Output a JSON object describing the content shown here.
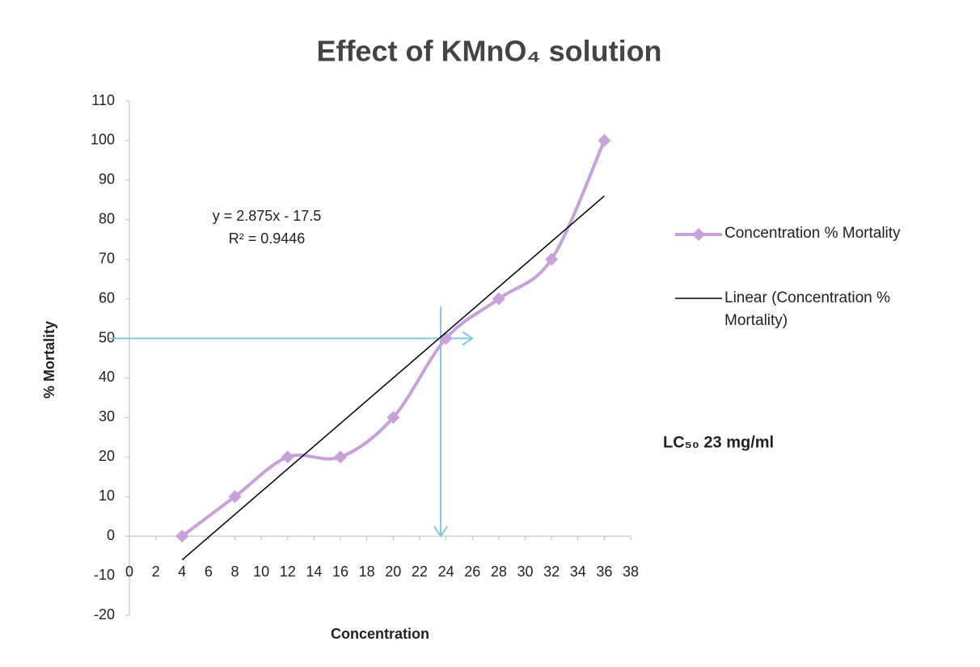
{
  "chart_data": {
    "type": "line",
    "title": "Effect of KMnO₄ solution",
    "x_label": "Concentration",
    "y_label": "% Mortality",
    "x": [
      4,
      8,
      12,
      16,
      20,
      24,
      28,
      32,
      36
    ],
    "series": [
      {
        "name": "Concentration % Mortality",
        "color": "#c9a0dc",
        "values": [
          0,
          10,
          20,
          20,
          30,
          50,
          60,
          70,
          100
        ]
      },
      {
        "name": "Linear (Concentration % Mortality)",
        "color": "#000000",
        "x": [
          4,
          36
        ],
        "values": [
          -6,
          86
        ]
      }
    ],
    "annotations": {
      "equation": "y = 2.875x - 17.5",
      "r_squared": "R² = 0.9446",
      "lc50": "LC₅₀ 23 mg/ml"
    },
    "guide": {
      "x": 23.6,
      "y": 50,
      "x_end": 26,
      "y_top": 58,
      "color": "#7ec8e3"
    },
    "xlim": [
      0,
      38
    ],
    "ylim": [
      -20,
      110
    ],
    "xticks": [
      0,
      2,
      4,
      6,
      8,
      10,
      12,
      14,
      16,
      18,
      20,
      22,
      24,
      26,
      28,
      30,
      32,
      34,
      36,
      38
    ],
    "yticks": [
      -20,
      -10,
      0,
      10,
      20,
      30,
      40,
      50,
      60,
      70,
      80,
      90,
      100,
      110
    ],
    "grid": false
  }
}
